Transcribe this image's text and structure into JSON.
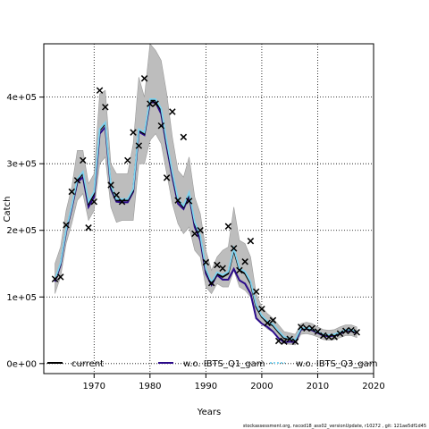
{
  "chart_data": {
    "type": "line",
    "title": "",
    "xlabel": "Years",
    "ylabel": "Catch",
    "xlim": [
      1961,
      2020
    ],
    "ylim": [
      -15000,
      480000
    ],
    "x_ticks": [
      1970,
      1980,
      1990,
      2000,
      2010,
      2020
    ],
    "x_tick_labels": [
      "1970",
      "1980",
      "1990",
      "2000",
      "2010",
      "2020"
    ],
    "y_ticks": [
      0,
      100000,
      200000,
      300000,
      400000
    ],
    "y_tick_labels": [
      "0e+00",
      "1e+05",
      "2e+05",
      "3e+05",
      "4e+05"
    ],
    "grid": "dotted",
    "legend_position": "bottom",
    "legend": [
      "current",
      "w.o. IBTS_Q1_gam",
      "w.o. IBTS_Q3_gam"
    ],
    "years": [
      1963,
      1964,
      1965,
      1966,
      1967,
      1968,
      1969,
      1970,
      1971,
      1972,
      1973,
      1974,
      1975,
      1976,
      1977,
      1978,
      1979,
      1980,
      1981,
      1982,
      1983,
      1984,
      1985,
      1986,
      1987,
      1988,
      1989,
      1990,
      1991,
      1992,
      1993,
      1994,
      1995,
      1996,
      1997,
      1998,
      1999,
      2000,
      2001,
      2002,
      2003,
      2004,
      2005,
      2006,
      2007,
      2008,
      2009,
      2010,
      2011,
      2012,
      2013,
      2014,
      2015,
      2016,
      2017
    ],
    "series": [
      {
        "name": "current",
        "color": "#000000",
        "values": [
          125000,
          150000,
          200000,
          235000,
          275000,
          285000,
          240000,
          255000,
          350000,
          360000,
          265000,
          245000,
          245000,
          245000,
          260000,
          350000,
          345000,
          395000,
          395000,
          380000,
          330000,
          285000,
          245000,
          235000,
          255000,
          210000,
          190000,
          140000,
          120000,
          135000,
          130000,
          135000,
          170000,
          140000,
          135000,
          120000,
          85000,
          70000,
          62000,
          57000,
          47000,
          38000,
          37000,
          35000,
          52000,
          53000,
          51000,
          47000,
          43000,
          42000,
          43000,
          46000,
          50000,
          50000,
          47000
        ],
        "lower": [
          105000,
          130000,
          180000,
          210000,
          245000,
          255000,
          215000,
          230000,
          300000,
          310000,
          235000,
          212000,
          215000,
          215000,
          215000,
          300000,
          300000,
          335000,
          345000,
          330000,
          285000,
          240000,
          210000,
          195000,
          205000,
          170000,
          160000,
          115000,
          105000,
          120000,
          115000,
          115000,
          140000,
          115000,
          110000,
          100000,
          70000,
          60000,
          52000,
          47000,
          37000,
          30000,
          29000,
          28000,
          44000,
          45000,
          43000,
          40000,
          36000,
          35000,
          36000,
          39000,
          42000,
          42000,
          39000
        ],
        "upper": [
          150000,
          175000,
          230000,
          265000,
          320000,
          320000,
          270000,
          285000,
          405000,
          410000,
          300000,
          285000,
          285000,
          285000,
          330000,
          430000,
          400000,
          480000,
          470000,
          455000,
          405000,
          340000,
          290000,
          280000,
          310000,
          250000,
          225000,
          170000,
          140000,
          160000,
          170000,
          175000,
          235000,
          185000,
          180000,
          160000,
          105000,
          85000,
          75000,
          68000,
          58000,
          48000,
          46000,
          44000,
          60000,
          62000,
          60000,
          55000,
          51000,
          50000,
          51000,
          55000,
          58000,
          58000,
          55000
        ]
      },
      {
        "name": "w.o. IBTS_Q1_gam",
        "color": "#2b0a8a",
        "values": [
          123000,
          148000,
          198000,
          233000,
          272000,
          280000,
          235000,
          250000,
          345000,
          355000,
          262000,
          243000,
          242000,
          242000,
          258000,
          348000,
          343000,
          392000,
          392000,
          375000,
          325000,
          280000,
          240000,
          232000,
          252000,
          205000,
          185000,
          135000,
          118000,
          133000,
          126000,
          126000,
          142000,
          125000,
          120000,
          105000,
          68000,
          60000,
          55000,
          48000,
          38000,
          32000,
          33000,
          32000,
          51000,
          52000,
          50000,
          46000,
          42000,
          41000,
          42000,
          45000,
          49000,
          49000,
          46000
        ]
      },
      {
        "name": "w.o. IBTS_Q3_gam",
        "color": "#7fd3f0",
        "values": [
          126000,
          151000,
          201000,
          236000,
          277000,
          288000,
          243000,
          258000,
          352000,
          362000,
          268000,
          247000,
          247000,
          247000,
          262000,
          352000,
          347000,
          397000,
          397000,
          383000,
          333000,
          287000,
          247000,
          237000,
          257000,
          212000,
          192000,
          142000,
          122000,
          137000,
          133000,
          138000,
          173000,
          143000,
          138000,
          123000,
          88000,
          72000,
          64000,
          59000,
          49000,
          40000,
          38000,
          36000,
          53000,
          54000,
          52000,
          48000,
          44000,
          43000,
          44000,
          47000,
          51000,
          51000,
          48000
        ]
      }
    ],
    "observations": {
      "marker": "x",
      "x": [
        1963,
        1964,
        1965,
        1966,
        1967,
        1968,
        1969,
        1970,
        1971,
        1972,
        1973,
        1974,
        1975,
        1976,
        1977,
        1978,
        1979,
        1980,
        1981,
        1982,
        1983,
        1984,
        1985,
        1986,
        1987,
        1988,
        1989,
        1990,
        1991,
        1992,
        1993,
        1994,
        1995,
        1996,
        1997,
        1998,
        1999,
        2000,
        2001,
        2002,
        2003,
        2004,
        2005,
        2006,
        2007,
        2008,
        2009,
        2010,
        2011,
        2012,
        2013,
        2014,
        2015,
        2016,
        2017
      ],
      "y": [
        127000,
        130000,
        208000,
        258000,
        275000,
        305000,
        204000,
        243000,
        410000,
        385000,
        268000,
        253000,
        243000,
        305000,
        347000,
        327000,
        428000,
        390000,
        390000,
        357000,
        279000,
        378000,
        245000,
        340000,
        244000,
        195000,
        200000,
        152000,
        121000,
        148000,
        143000,
        206000,
        173000,
        140000,
        153000,
        184000,
        108000,
        82000,
        61000,
        65000,
        34000,
        33000,
        37000,
        33000,
        55000,
        53000,
        53000,
        48000,
        42000,
        40000,
        40000,
        45000,
        49000,
        50000,
        47000
      ]
    },
    "caption": "stockassessment.org, nscod18_ass02_versionUpdate, r10272 , git: 121ae5df1d45"
  }
}
